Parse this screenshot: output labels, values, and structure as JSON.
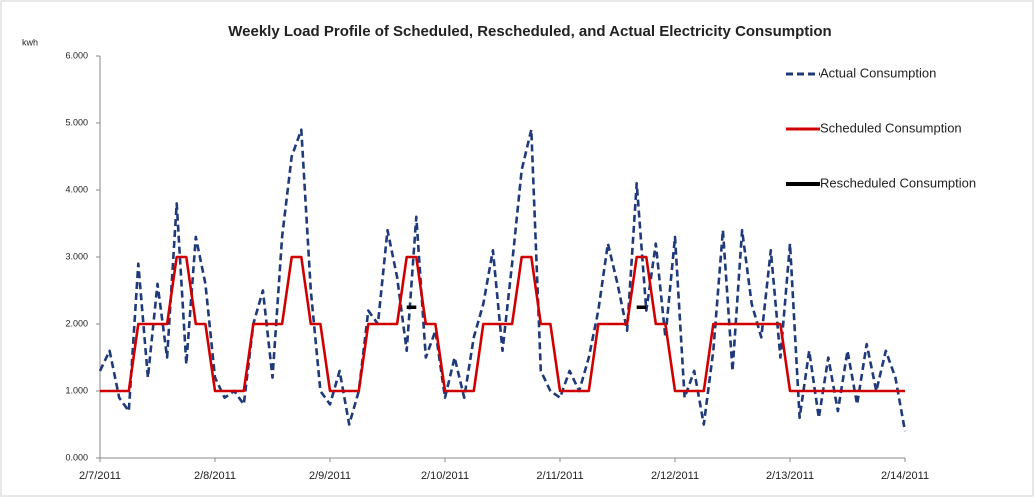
{
  "chart_data": {
    "type": "line",
    "title": "Weekly Load Profile of Scheduled, Rescheduled, and Actual Electricity Consumption",
    "y_label": "kwh",
    "categories": [
      "2/7/2011",
      null,
      null,
      null,
      null,
      null,
      null,
      null,
      null,
      null,
      null,
      null,
      "2/8/2011",
      null,
      null,
      null,
      null,
      null,
      null,
      null,
      null,
      null,
      null,
      null,
      "2/9/2011",
      null,
      null,
      null,
      null,
      null,
      null,
      null,
      null,
      null,
      null,
      null,
      "2/10/2011",
      null,
      null,
      null,
      null,
      null,
      null,
      null,
      null,
      null,
      null,
      null,
      "2/11/2011",
      null,
      null,
      null,
      null,
      null,
      null,
      null,
      null,
      null,
      null,
      null,
      "2/12/2011",
      null,
      null,
      null,
      null,
      null,
      null,
      null,
      null,
      null,
      null,
      null,
      "2/13/2011",
      null,
      null,
      null,
      null,
      null,
      null,
      null,
      null,
      null,
      null,
      null,
      "2/14/2011"
    ],
    "series": [
      {
        "name": "Actual Consumption",
        "color": "#1f3a7a",
        "line_style": "dashed",
        "values": [
          1.3,
          1.6,
          0.9,
          0.7,
          2.9,
          1.2,
          2.6,
          1.5,
          3.8,
          1.4,
          3.3,
          2.6,
          1.2,
          0.9,
          1.0,
          0.8,
          2.0,
          2.5,
          1.2,
          3.3,
          4.5,
          4.9,
          2.5,
          1.0,
          0.8,
          1.3,
          0.5,
          1.0,
          2.2,
          2.0,
          3.4,
          2.7,
          1.6,
          3.6,
          1.5,
          1.9,
          0.9,
          1.5,
          0.9,
          1.8,
          2.3,
          3.1,
          1.6,
          2.9,
          4.3,
          4.9,
          1.3,
          1.0,
          0.9,
          1.3,
          1.0,
          1.5,
          2.2,
          3.2,
          2.6,
          1.9,
          4.1,
          2.2,
          3.2,
          1.8,
          3.3,
          0.9,
          1.3,
          0.5,
          1.6,
          3.4,
          1.3,
          3.4,
          2.3,
          1.8,
          3.1,
          1.5,
          3.2,
          0.6,
          1.6,
          0.6,
          1.5,
          0.7,
          1.6,
          0.8,
          1.7,
          1.0,
          1.6,
          1.2,
          0.4
        ]
      },
      {
        "name": "Scheduled Consumption",
        "color": "#d00000",
        "line_style": "solid",
        "values": [
          1,
          1,
          1,
          1,
          2,
          2,
          2,
          2,
          3,
          3,
          2,
          2,
          1,
          1,
          1,
          1,
          2,
          2,
          2,
          2,
          3,
          3,
          2,
          2,
          1,
          1,
          1,
          1,
          2,
          2,
          2,
          2,
          3,
          3,
          2,
          2,
          1,
          1,
          1,
          1,
          2,
          2,
          2,
          2,
          3,
          3,
          2,
          2,
          1,
          1,
          1,
          1,
          2,
          2,
          2,
          2,
          3,
          3,
          2,
          2,
          1,
          1,
          1,
          1,
          2,
          2,
          2,
          2,
          2,
          2,
          2,
          2,
          1,
          1,
          1,
          1,
          1,
          1,
          1,
          1,
          1,
          1,
          1,
          1,
          1
        ]
      },
      {
        "name": "Rescheduled Consumption",
        "color": "#000000",
        "line_style": "solid",
        "values": [
          null,
          null,
          null,
          null,
          null,
          null,
          null,
          null,
          null,
          null,
          null,
          null,
          null,
          null,
          null,
          null,
          null,
          null,
          null,
          null,
          null,
          null,
          null,
          null,
          null,
          null,
          null,
          null,
          null,
          null,
          null,
          null,
          2.25,
          2.25,
          null,
          null,
          null,
          null,
          null,
          null,
          null,
          null,
          null,
          null,
          null,
          null,
          null,
          null,
          null,
          null,
          null,
          null,
          null,
          null,
          null,
          null,
          2.25,
          2.25,
          null,
          null,
          null,
          null,
          null,
          null,
          null,
          null,
          null,
          null,
          null,
          null,
          null,
          null,
          null,
          null,
          null,
          null,
          null,
          null,
          null,
          null,
          null,
          null,
          null,
          null,
          null
        ]
      }
    ],
    "ylim": [
      0,
      6
    ],
    "yticks": [
      {
        "value": 0,
        "label": "0.000"
      },
      {
        "value": 1,
        "label": "1.000"
      },
      {
        "value": 2,
        "label": "2.000"
      },
      {
        "value": 3,
        "label": "3.000"
      },
      {
        "value": 4,
        "label": "4.000"
      },
      {
        "value": 5,
        "label": "5.000"
      },
      {
        "value": 6,
        "label": "6.000"
      }
    ],
    "grid": false,
    "legend": "right"
  }
}
